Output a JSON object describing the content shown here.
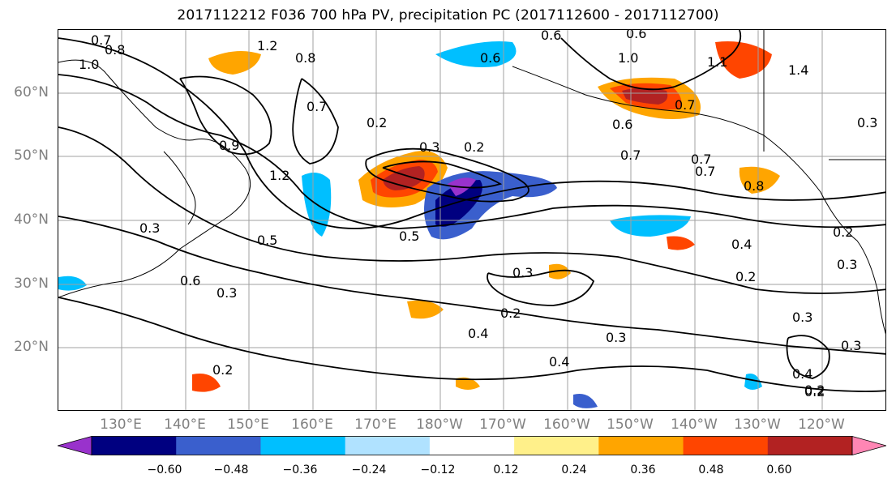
{
  "title": "2017112212 F036 700 hPa PV, precipitation PC (2017112600 - 2017112700)",
  "lat_labels": [
    "60°N",
    "50°N",
    "40°N",
    "30°N",
    "20°N"
  ],
  "lon_labels": [
    "130°E",
    "140°E",
    "150°E",
    "160°E",
    "170°E",
    "180°W",
    "170°W",
    "160°W",
    "150°W",
    "140°W",
    "130°W",
    "120°W"
  ],
  "colorbar": {
    "colors": [
      "#9932cc",
      "#000080",
      "#3a5fcd",
      "#00bfff",
      "#b0e2ff",
      "#ffffff",
      "#fff08a",
      "#ffa500",
      "#ff4500",
      "#b22222",
      "#ff86b4"
    ],
    "tick_labels": [
      "−0.60",
      "−0.48",
      "−0.36",
      "−0.24",
      "−0.12",
      "0.12",
      "0.24",
      "0.36",
      "0.48",
      "0.60"
    ]
  },
  "contour_labels": [
    "0.7",
    "0.8",
    "1.0",
    "1.2",
    "0.8",
    "0.7",
    "0.6",
    "0.6",
    "1.0",
    "0.6",
    "0.7",
    "1.1",
    "1.4",
    "0.6",
    "0.9",
    "1.2",
    "0.2",
    "0.3",
    "0.2",
    "0.3",
    "0.5",
    "0.3",
    "0.7",
    "0.5",
    "0.6",
    "0.3",
    "0.3",
    "0.2",
    "0.4",
    "0.3",
    "0.4",
    "0.2",
    "0.8",
    "0.7",
    "0.4",
    "0.2",
    "0.2",
    "0.3",
    "0.3",
    "0.3",
    "0.4",
    "0.2",
    "0.2",
    "0.7"
  ]
}
